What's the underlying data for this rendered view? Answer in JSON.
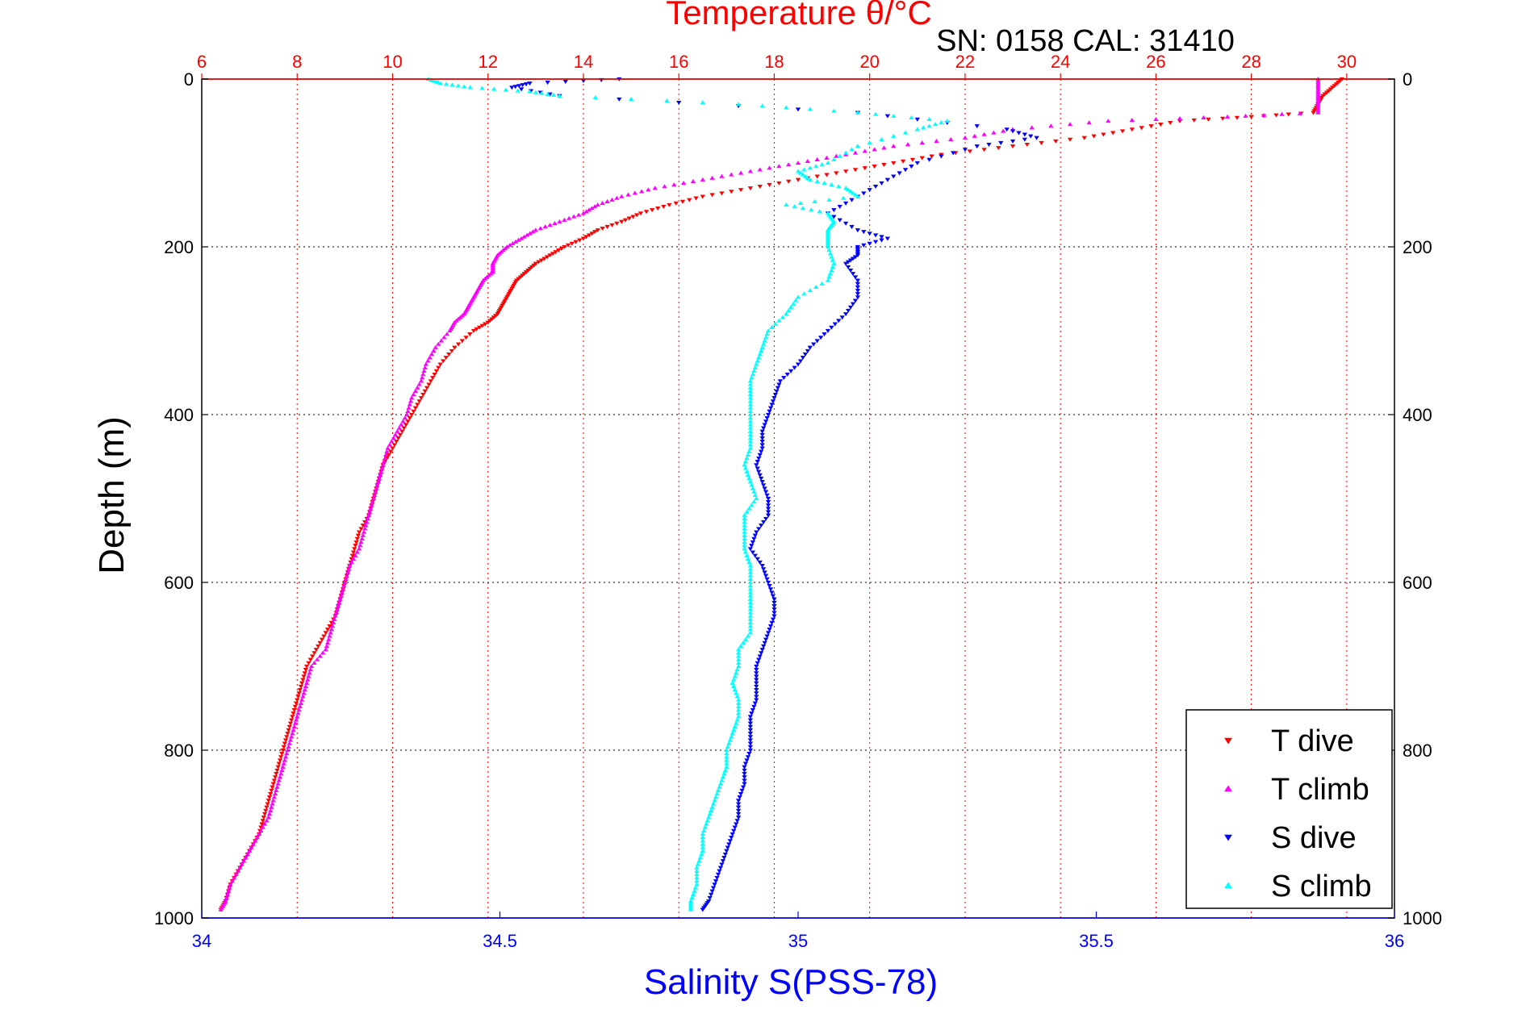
{
  "chart_data": {
    "type": "scatter",
    "title": "Temperature θ/°C",
    "subtitle": "SN: 0158  CAL: 31410",
    "xlabel": "Salinity S(PSS-78)",
    "x2label": "Temperature θ/°C",
    "ylabel": "Depth (m)",
    "salinity_axis": {
      "lim": [
        34,
        36
      ],
      "ticks": [
        34,
        34.5,
        35,
        35.5,
        36
      ],
      "tick_labels": [
        "34",
        "34.5",
        "35",
        "35.5",
        "36"
      ],
      "color": "#0000ff"
    },
    "temperature_axis": {
      "lim": [
        6,
        31
      ],
      "ticks": [
        6,
        8,
        10,
        12,
        14,
        16,
        18,
        20,
        22,
        24,
        26,
        28,
        30
      ],
      "tick_labels": [
        "6",
        "8",
        "10",
        "12",
        "14",
        "16",
        "18",
        "20",
        "22",
        "24",
        "26",
        "28",
        "30"
      ],
      "color": "#ff0000"
    },
    "depth_axis": {
      "lim": [
        0,
        1000
      ],
      "reversed": true,
      "ticks": [
        0,
        200,
        400,
        600,
        800,
        1000
      ],
      "tick_labels": [
        "0",
        "200",
        "400",
        "600",
        "800",
        "1000"
      ]
    },
    "grid": true,
    "legend": {
      "position": "bottom-right",
      "entries": [
        "T dive",
        "T climb",
        "S dive",
        "S climb"
      ]
    },
    "series": [
      {
        "name": "T dive",
        "axis": "temperature",
        "marker": "down-triangle",
        "color": "#ff0000",
        "depth": [
          0,
          10,
          20,
          30,
          40,
          45,
          50,
          60,
          70,
          80,
          90,
          100,
          110,
          120,
          130,
          140,
          150,
          160,
          170,
          180,
          190,
          200,
          210,
          220,
          230,
          240,
          250,
          260,
          270,
          280,
          290,
          300,
          320,
          340,
          360,
          380,
          400,
          420,
          440,
          460,
          480,
          500,
          520,
          540,
          560,
          580,
          600,
          620,
          640,
          660,
          680,
          700,
          720,
          740,
          760,
          780,
          800,
          820,
          840,
          860,
          880,
          900,
          920,
          940,
          960,
          980,
          990
        ],
        "values": [
          29.9,
          29.7,
          29.5,
          29.4,
          29.3,
          28,
          26.5,
          25.5,
          24.5,
          23,
          21.5,
          20.5,
          19.5,
          18.5,
          17.5,
          16.5,
          15.8,
          15.2,
          14.8,
          14.3,
          14,
          13.6,
          13.3,
          13,
          12.8,
          12.6,
          12.5,
          12.4,
          12.3,
          12.2,
          12,
          11.7,
          11.3,
          11,
          10.8,
          10.6,
          10.4,
          10.2,
          10,
          9.8,
          9.7,
          9.6,
          9.5,
          9.3,
          9.2,
          9.1,
          9,
          8.9,
          8.8,
          8.6,
          8.4,
          8.2,
          8.1,
          8,
          7.9,
          7.8,
          7.7,
          7.6,
          7.5,
          7.4,
          7.3,
          7.2,
          7,
          6.8,
          6.6,
          6.5,
          6.4
        ]
      },
      {
        "name": "T climb",
        "axis": "temperature",
        "marker": "up-triangle",
        "color": "#ff00ff",
        "depth": [
          0,
          10,
          20,
          30,
          40,
          45,
          50,
          60,
          70,
          80,
          90,
          100,
          110,
          120,
          130,
          140,
          150,
          160,
          170,
          180,
          190,
          200,
          210,
          220,
          230,
          240,
          250,
          260,
          270,
          280,
          290,
          300,
          320,
          340,
          360,
          380,
          400,
          420,
          440,
          460,
          480,
          500,
          520,
          540,
          560,
          580,
          600,
          620,
          640,
          660,
          680,
          700,
          720,
          740,
          760,
          780,
          800,
          820,
          840,
          860,
          880,
          900,
          920,
          940,
          960,
          980,
          990
        ],
        "values": [
          29.4,
          29.4,
          29.4,
          29.4,
          29.4,
          27.5,
          25,
          23,
          22,
          20.5,
          19.5,
          18.5,
          17.5,
          16.5,
          15.5,
          14.8,
          14.3,
          14,
          13.5,
          13,
          12.7,
          12.4,
          12.2,
          12.1,
          12.1,
          11.9,
          11.8,
          11.7,
          11.6,
          11.5,
          11.3,
          11.2,
          10.9,
          10.7,
          10.6,
          10.4,
          10.3,
          10.1,
          9.9,
          9.8,
          9.7,
          9.6,
          9.5,
          9.4,
          9.3,
          9.1,
          9,
          8.9,
          8.8,
          8.7,
          8.6,
          8.3,
          8.2,
          8.1,
          8,
          7.9,
          7.8,
          7.7,
          7.6,
          7.5,
          7.4,
          7.2,
          7,
          6.8,
          6.6,
          6.5,
          6.4
        ]
      },
      {
        "name": "S dive",
        "axis": "salinity",
        "marker": "down-triangle",
        "color": "#0000ff",
        "depth": [
          0,
          5,
          10,
          20,
          40,
          60,
          70,
          80,
          100,
          120,
          140,
          160,
          180,
          190,
          200,
          210,
          220,
          240,
          260,
          280,
          300,
          320,
          340,
          360,
          380,
          400,
          420,
          440,
          460,
          480,
          500,
          520,
          540,
          560,
          580,
          600,
          620,
          640,
          660,
          680,
          700,
          720,
          740,
          760,
          780,
          800,
          820,
          840,
          860,
          880,
          900,
          920,
          940,
          960,
          980,
          990
        ],
        "values": [
          34.7,
          34.55,
          34.52,
          34.6,
          35.1,
          35.35,
          35.4,
          35.3,
          35.2,
          35.15,
          35.1,
          35.05,
          35.1,
          35.15,
          35.1,
          35.1,
          35.08,
          35.1,
          35.1,
          35.08,
          35.05,
          35.02,
          35,
          34.97,
          34.96,
          34.95,
          34.94,
          34.94,
          34.93,
          34.94,
          34.95,
          34.95,
          34.93,
          34.92,
          34.94,
          34.95,
          34.96,
          34.96,
          34.95,
          34.94,
          34.93,
          34.93,
          34.93,
          34.92,
          34.92,
          34.92,
          34.91,
          34.91,
          34.9,
          34.9,
          34.89,
          34.88,
          34.87,
          34.86,
          34.85,
          34.84
        ]
      },
      {
        "name": "S climb",
        "axis": "salinity",
        "marker": "up-triangle",
        "color": "#00ffff",
        "depth": [
          0,
          5,
          10,
          15,
          20,
          30,
          40,
          50,
          60,
          80,
          100,
          110,
          120,
          130,
          140,
          150,
          160,
          170,
          180,
          190,
          200,
          220,
          240,
          260,
          280,
          300,
          320,
          340,
          360,
          380,
          400,
          420,
          440,
          460,
          480,
          500,
          520,
          540,
          560,
          580,
          600,
          620,
          640,
          660,
          680,
          700,
          720,
          740,
          760,
          780,
          800,
          820,
          840,
          860,
          880,
          900,
          920,
          940,
          960,
          980,
          990
        ],
        "values": [
          34.38,
          34.4,
          34.45,
          34.55,
          34.6,
          34.9,
          35.1,
          35.25,
          35.2,
          35.1,
          35.05,
          35,
          35.02,
          35.08,
          35.1,
          34.98,
          35.05,
          35.06,
          35.05,
          35.05,
          35.05,
          35.06,
          35.05,
          35,
          34.98,
          34.95,
          34.94,
          34.93,
          34.92,
          34.92,
          34.92,
          34.92,
          34.92,
          34.91,
          34.92,
          34.93,
          34.91,
          34.91,
          34.91,
          34.92,
          34.92,
          34.92,
          34.92,
          34.92,
          34.9,
          34.9,
          34.89,
          34.9,
          34.9,
          34.89,
          34.88,
          34.88,
          34.87,
          34.86,
          34.85,
          34.84,
          34.84,
          34.83,
          34.83,
          34.82,
          34.82
        ]
      }
    ]
  }
}
